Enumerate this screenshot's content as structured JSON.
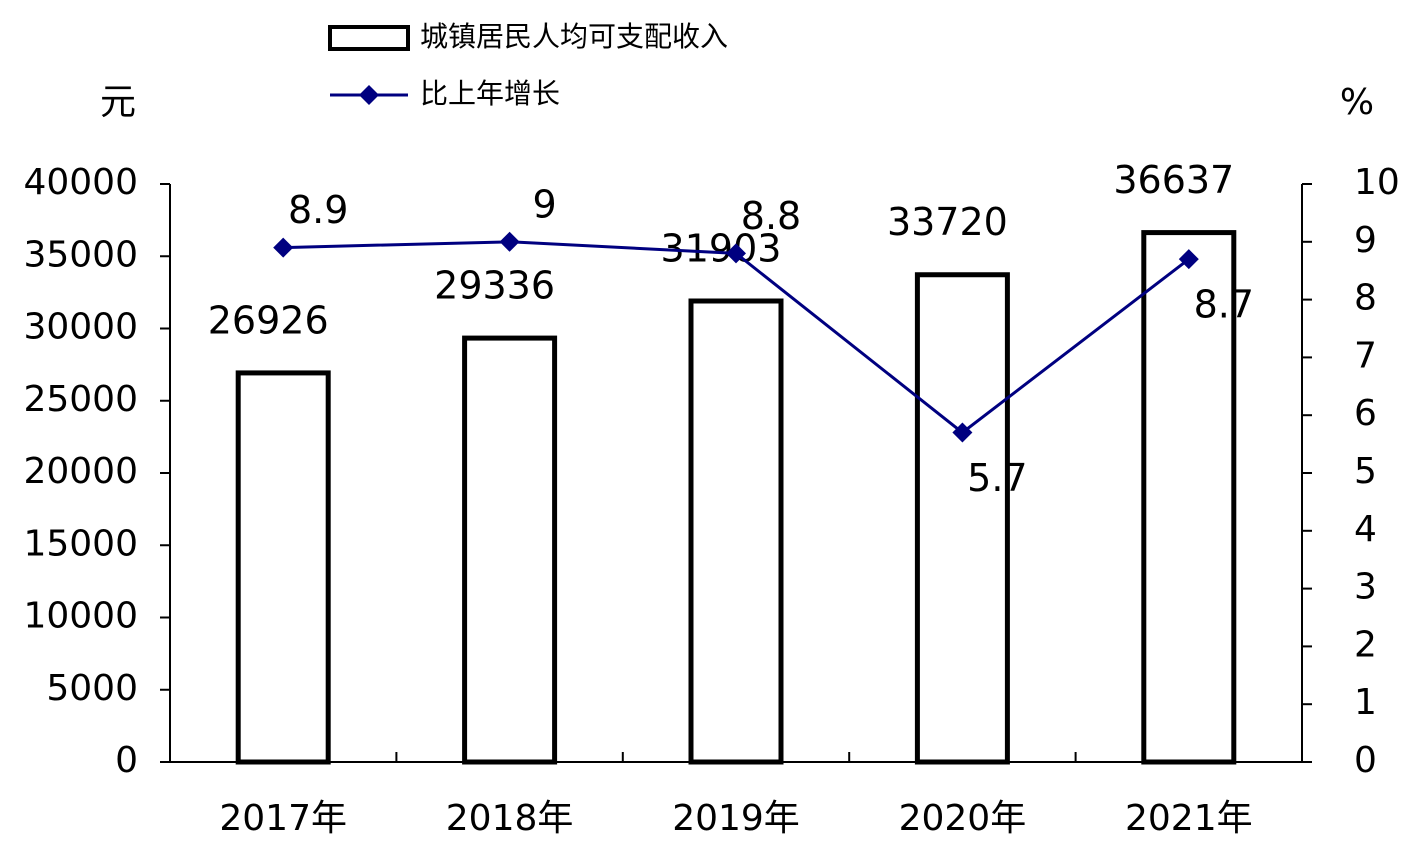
{
  "chart_data": {
    "type": "bar-line",
    "y_unit": "元",
    "y2_unit": "%",
    "categories": [
      "2017年",
      "2018年",
      "2019年",
      "2020年",
      "2021年"
    ],
    "series": [
      {
        "name": "城镇居民人均可支配收入",
        "type": "bar",
        "color": "#ffffff",
        "stroke": "#000000",
        "values": [
          26926,
          29336,
          31903,
          33720,
          36637
        ]
      },
      {
        "name": "比上年增长",
        "type": "line",
        "color": "#000080",
        "axis": "y2",
        "values": [
          8.9,
          9,
          8.8,
          5.7,
          8.7
        ]
      }
    ],
    "ylim": [
      0,
      40000
    ],
    "yticks": [
      0,
      5000,
      10000,
      15000,
      20000,
      25000,
      30000,
      35000,
      40000
    ],
    "y2lim": [
      0,
      10
    ],
    "y2ticks": [
      0,
      1,
      2,
      3,
      4,
      5,
      6,
      7,
      8,
      9,
      10
    ],
    "grid": false
  }
}
